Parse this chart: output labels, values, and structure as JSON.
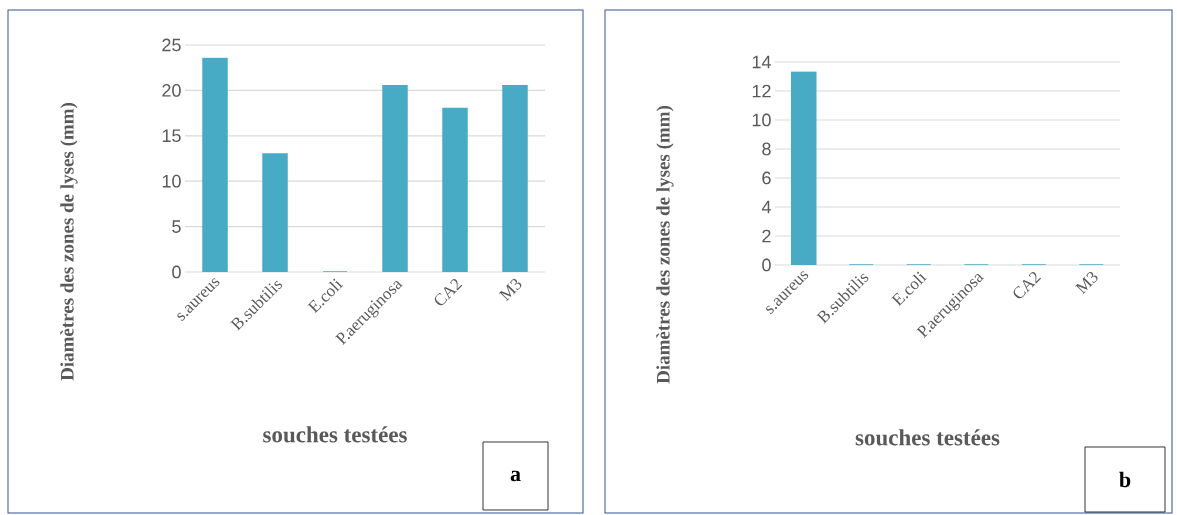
{
  "chart_data": [
    {
      "type": "bar",
      "categories": [
        "s.aureus",
        "B.subtilis",
        "E.coli",
        "P.aeruginosa",
        "CA2",
        "M3"
      ],
      "values": [
        23.5,
        13,
        0,
        20.5,
        18,
        20.5
      ],
      "color": "#47abc6",
      "ylim": [
        0,
        25
      ],
      "yticks": [
        0,
        5,
        10,
        15,
        20,
        25
      ],
      "grid": "y",
      "xlabel": "souches testées",
      "ylabel": "Diamètres des zones de lyses (mm)",
      "annotations": [
        "a"
      ]
    },
    {
      "type": "bar",
      "categories": [
        "s.aureus",
        "B.subtilis",
        "E.coli",
        "P.aeruginosa",
        "CA2",
        "M3"
      ],
      "values": [
        13.3,
        0,
        0,
        0,
        0,
        0
      ],
      "color": "#47abc6",
      "ylim": [
        0,
        14
      ],
      "yticks": [
        0,
        2,
        4,
        6,
        8,
        10,
        12,
        14
      ],
      "grid": "y",
      "xlabel": "souches testées",
      "ylabel": "Diamètres des zones de lyses (mm)",
      "annotations": [
        "b"
      ]
    }
  ]
}
